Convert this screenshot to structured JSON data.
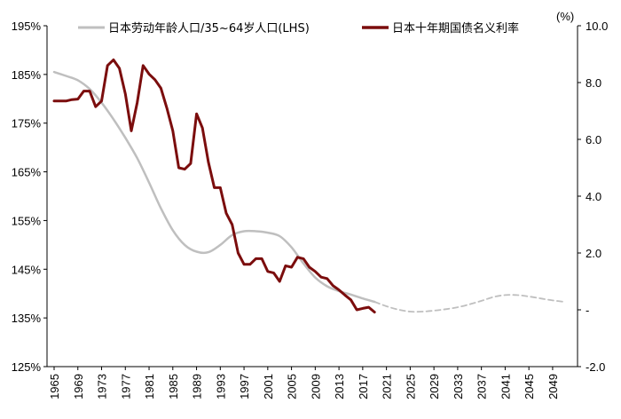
{
  "chart_data": {
    "type": "line",
    "title": "",
    "unit_right": "(%)",
    "left_axis": {
      "ticks": [
        {
          "v": 125,
          "label": "125%"
        },
        {
          "v": 135,
          "label": "135%"
        },
        {
          "v": 145,
          "label": "145%"
        },
        {
          "v": 155,
          "label": "155%"
        },
        {
          "v": 165,
          "label": "165%"
        },
        {
          "v": 175,
          "label": "175%"
        },
        {
          "v": 185,
          "label": "185%"
        },
        {
          "v": 195,
          "label": "195%"
        }
      ],
      "ylim": [
        125,
        195
      ]
    },
    "right_axis": {
      "ticks": [
        {
          "v": -2,
          "label": "-2.0"
        },
        {
          "v": 0,
          "label": "-"
        },
        {
          "v": 2,
          "label": "2.0"
        },
        {
          "v": 4,
          "label": "4.0"
        },
        {
          "v": 6,
          "label": "6.0"
        },
        {
          "v": 8,
          "label": "8.0"
        },
        {
          "v": 10,
          "label": "10.0"
        }
      ],
      "ylim": [
        -2,
        10
      ]
    },
    "x_axis": {
      "labels": [
        "1965",
        "1969",
        "1973",
        "1977",
        "1981",
        "1985",
        "1989",
        "1993",
        "1997",
        "2001",
        "2005",
        "2009",
        "2013",
        "2017",
        "2021",
        "2025",
        "2029",
        "2033",
        "2037",
        "2041",
        "2045",
        "2049"
      ],
      "xlim": [
        1965,
        2052
      ]
    },
    "legend": [
      {
        "name": "日本劳动年龄人口/35~64岁人口(LHS)",
        "color": "#bfbfbf"
      },
      {
        "name": "日本十年期国债名义利率",
        "color": "#7b0d0d"
      }
    ],
    "series": [
      {
        "name": "日本劳动年龄人口/35~64岁人口(LHS)",
        "axis": "left",
        "color": "#bfbfbf",
        "style": "solid",
        "x": [
          1965,
          1967,
          1969,
          1971,
          1973,
          1975,
          1977,
          1979,
          1981,
          1983,
          1985,
          1987,
          1989,
          1991,
          1993,
          1995,
          1997,
          1999,
          2001,
          2003,
          2005,
          2007,
          2009,
          2011,
          2013,
          2015,
          2017,
          2019
        ],
        "y": [
          185.5,
          184.7,
          183.8,
          182,
          179.2,
          175.8,
          172,
          167.8,
          162.8,
          157.5,
          153,
          150,
          148.6,
          148.5,
          150,
          152,
          152.8,
          152.8,
          152.5,
          151.8,
          149.5,
          146.2,
          143.3,
          141.5,
          140.5,
          139.8,
          139,
          138.3
        ]
      },
      {
        "name": "日本劳动年龄人口/35~64岁人口(LHS) 预测",
        "axis": "left",
        "color": "#bfbfbf",
        "style": "dashed",
        "x": [
          2019,
          2021,
          2023,
          2025,
          2027,
          2029,
          2031,
          2033,
          2035,
          2037,
          2039,
          2041,
          2043,
          2045,
          2047,
          2049,
          2051
        ],
        "y": [
          138.3,
          137.4,
          136.7,
          136.3,
          136.3,
          136.5,
          136.8,
          137.2,
          137.8,
          138.5,
          139.3,
          139.7,
          139.7,
          139.4,
          139,
          138.6,
          138.3
        ]
      },
      {
        "name": "日本十年期国债名义利率",
        "axis": "right",
        "color": "#7b0d0d",
        "style": "solid",
        "x": [
          1965,
          1966,
          1967,
          1968,
          1969,
          1970,
          1971,
          1972,
          1973,
          1974,
          1975,
          1976,
          1977,
          1978,
          1979,
          1980,
          1981,
          1982,
          1983,
          1984,
          1985,
          1986,
          1987,
          1988,
          1989,
          1990,
          1991,
          1992,
          1993,
          1994,
          1995,
          1996,
          1997,
          1998,
          1999,
          2000,
          2001,
          2002,
          2003,
          2004,
          2005,
          2006,
          2007,
          2008,
          2009,
          2010,
          2011,
          2012,
          2013,
          2014,
          2015,
          2016,
          2017,
          2018,
          2019
        ],
        "y": [
          7.35,
          7.35,
          7.35,
          7.4,
          7.42,
          7.7,
          7.7,
          7.15,
          7.35,
          8.6,
          8.8,
          8.5,
          7.6,
          6.3,
          7.3,
          8.6,
          8.3,
          8.1,
          7.8,
          7.1,
          6.3,
          5.0,
          4.95,
          5.15,
          6.9,
          6.4,
          5.2,
          4.3,
          4.3,
          3.4,
          3.0,
          2.0,
          1.6,
          1.6,
          1.8,
          1.8,
          1.35,
          1.3,
          1.0,
          1.55,
          1.5,
          1.85,
          1.8,
          1.5,
          1.35,
          1.15,
          1.1,
          0.85,
          0.7,
          0.52,
          0.35,
          0.0,
          0.05,
          0.09,
          -0.08
        ]
      }
    ]
  }
}
